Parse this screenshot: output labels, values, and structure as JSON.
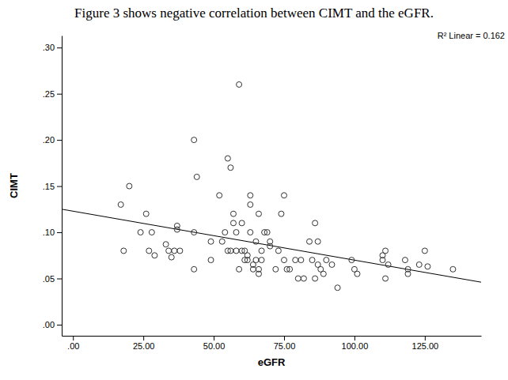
{
  "chart_data": {
    "type": "scatter",
    "title": "Figure 3 shows negative correlation between CIMT and the eGFR.",
    "x_label": "eGFR",
    "y_label": "CIMT",
    "annotation": "R² Linear = 0.162",
    "marker": "circle",
    "color": "#333333",
    "x": [
      17,
      18,
      20,
      24,
      26,
      27,
      28,
      29,
      33,
      34,
      35,
      36,
      37,
      37,
      38,
      43,
      44,
      43,
      43,
      49,
      49,
      52,
      53,
      54,
      55,
      55,
      56,
      56,
      57,
      57,
      58,
      58,
      59,
      59,
      60,
      60,
      61,
      61,
      62,
      62,
      63,
      63,
      63,
      64,
      64,
      65,
      65,
      66,
      66,
      66,
      67,
      67,
      68,
      69,
      70,
      70,
      72,
      73,
      74,
      75,
      75,
      76,
      77,
      79,
      80,
      81,
      82,
      84,
      85,
      86,
      86,
      87,
      87,
      88,
      89,
      90,
      92,
      94,
      99,
      100,
      101,
      110,
      110,
      111,
      111,
      112,
      118,
      119,
      119,
      123,
      125,
      126,
      135
    ],
    "values": [
      0.13,
      0.08,
      0.15,
      0.1,
      0.12,
      0.08,
      0.1,
      0.075,
      0.087,
      0.08,
      0.073,
      0.08,
      0.107,
      0.103,
      0.08,
      0.2,
      0.16,
      0.1,
      0.06,
      0.07,
      0.09,
      0.14,
      0.09,
      0.1,
      0.08,
      0.18,
      0.17,
      0.08,
      0.12,
      0.11,
      0.1,
      0.08,
      0.06,
      0.26,
      0.11,
      0.08,
      0.07,
      0.08,
      0.075,
      0.07,
      0.14,
      0.13,
      0.1,
      0.065,
      0.06,
      0.07,
      0.09,
      0.12,
      0.06,
      0.055,
      0.08,
      0.07,
      0.1,
      0.1,
      0.09,
      0.085,
      0.06,
      0.08,
      0.12,
      0.14,
      0.07,
      0.06,
      0.06,
      0.07,
      0.05,
      0.07,
      0.05,
      0.09,
      0.07,
      0.11,
      0.05,
      0.09,
      0.065,
      0.06,
      0.055,
      0.07,
      0.065,
      0.04,
      0.07,
      0.06,
      0.055,
      0.07,
      0.075,
      0.08,
      0.05,
      0.065,
      0.07,
      0.06,
      0.055,
      0.065,
      0.08,
      0.063,
      0.06
    ],
    "regression_line": {
      "x": [
        -4,
        145
      ],
      "values": [
        0.125,
        0.046
      ]
    },
    "xlim": [
      -4,
      145
    ],
    "ylim": [
      -0.012,
      0.313
    ],
    "xticks": [
      {
        "value": 0,
        "label": ".00"
      },
      {
        "value": 25,
        "label": "25.00"
      },
      {
        "value": 50,
        "label": "50.00"
      },
      {
        "value": 75,
        "label": "75.00"
      },
      {
        "value": 100,
        "label": "100.00"
      },
      {
        "value": 125,
        "label": "125.00"
      }
    ],
    "yticks": [
      {
        "value": 0,
        "label": ".00"
      },
      {
        "value": 0.05,
        "label": ".05"
      },
      {
        "value": 0.1,
        "label": ".10"
      },
      {
        "value": 0.15,
        "label": ".15"
      },
      {
        "value": 0.2,
        "label": ".20"
      },
      {
        "value": 0.25,
        "label": ".25"
      },
      {
        "value": 0.3,
        "label": ".30"
      }
    ]
  }
}
